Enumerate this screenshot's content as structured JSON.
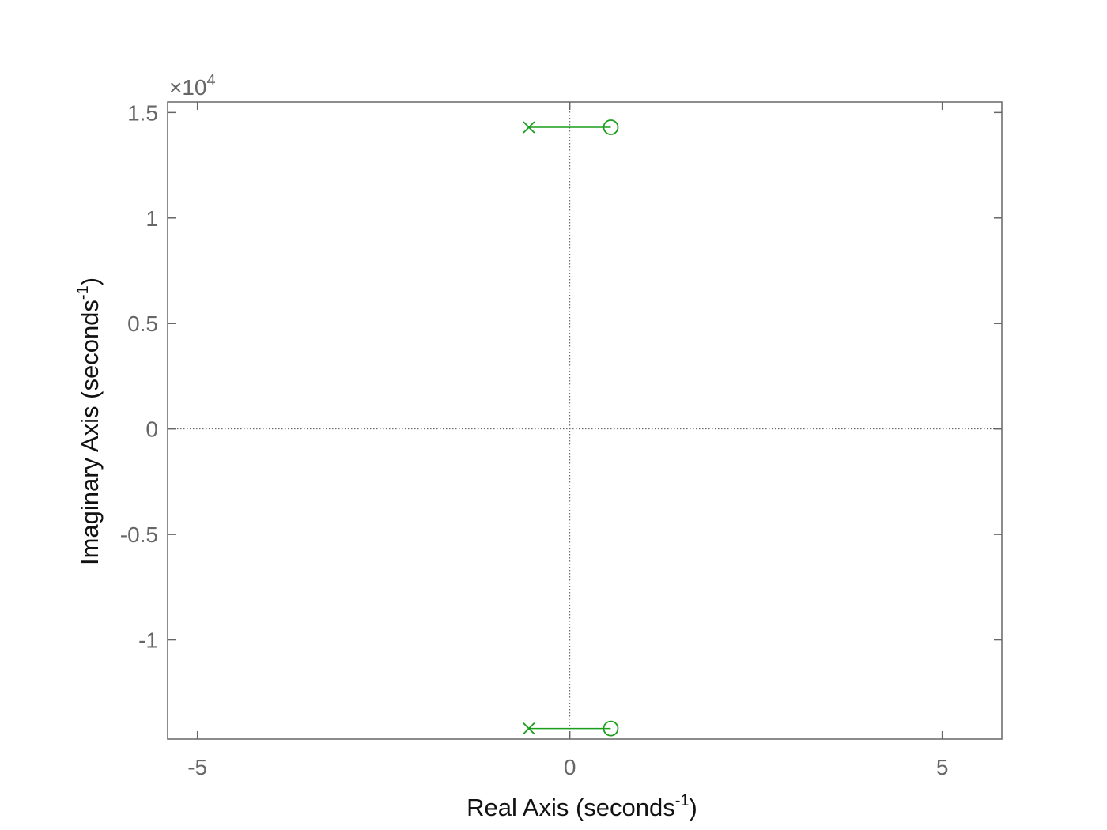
{
  "chart_data": {
    "type": "scatter",
    "title": "",
    "xlabel": "Real Axis (seconds",
    "xlabel_sup": "-1",
    "xlabel_close": ")",
    "ylabel": "Imaginary Axis (seconds",
    "ylabel_sup": "-1",
    "ylabel_close": ")",
    "y_exponent_prefix": "×10",
    "y_exponent_power": "4",
    "xlim": [
      -5.4,
      5.8
    ],
    "ylim": [
      -14700,
      15500
    ],
    "xticks": [
      -5,
      0,
      5
    ],
    "xtick_labels": [
      "-5",
      "0",
      "5"
    ],
    "yticks": [
      -10000,
      -5000,
      0,
      5000,
      10000,
      15000
    ],
    "ytick_labels": [
      "-1",
      "-0.5",
      "0",
      "0.5",
      "1",
      "1.5"
    ],
    "grid": false,
    "reference_lines": [
      "x=0 dotted",
      "y=0 dotted"
    ],
    "series": [
      {
        "marker": "x",
        "color": "#1a9e1a",
        "points": [
          [
            -0.55,
            14300
          ],
          [
            -0.55,
            -14200
          ]
        ]
      },
      {
        "marker": "o",
        "color": "#1a9e1a",
        "points": [
          [
            0.55,
            14300
          ],
          [
            0.55,
            -14200
          ]
        ]
      }
    ],
    "connections": [
      {
        "from": [
          -0.55,
          14300
        ],
        "to": [
          0.55,
          14300
        ]
      },
      {
        "from": [
          -0.55,
          -14200
        ],
        "to": [
          0.55,
          -14200
        ]
      }
    ]
  }
}
